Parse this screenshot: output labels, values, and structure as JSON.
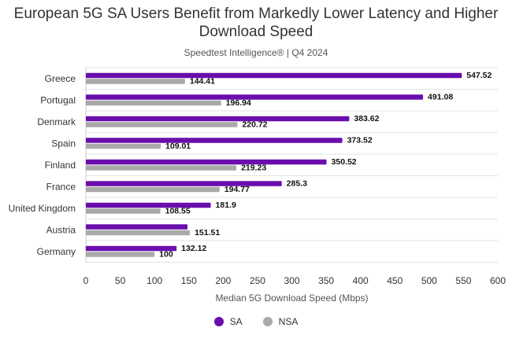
{
  "chart_data": {
    "type": "bar",
    "orientation": "horizontal",
    "title": "European 5G SA Users Benefit from Markedly Lower Latency and Higher Download Speed",
    "subtitle": "Speedtest Intelligence® | Q4 2024",
    "xlabel": "Median 5G Download Speed (Mbps)",
    "ylabel": "",
    "xlim": [
      0,
      600
    ],
    "xticks": [
      0,
      50,
      100,
      150,
      200,
      250,
      300,
      350,
      400,
      450,
      500,
      550,
      600
    ],
    "grid": true,
    "legend_position": "bottom",
    "categories": [
      "Greece",
      "Portugal",
      "Denmark",
      "Spain",
      "Finland",
      "France",
      "United Kingdom",
      "Austria",
      "Germany"
    ],
    "series": [
      {
        "name": "SA",
        "color": "#6a0dad",
        "values": [
          547.52,
          491.08,
          383.62,
          373.52,
          350.52,
          285.3,
          181.9,
          148,
          132.12
        ],
        "labels": [
          "547.52",
          "491.08",
          "383.62",
          "373.52",
          "350.52",
          "285.3",
          "181.9",
          "",
          "132.12"
        ]
      },
      {
        "name": "NSA",
        "color": "#a9a9a9",
        "values": [
          144.41,
          196.94,
          220.72,
          109.01,
          219.23,
          194.77,
          108.55,
          151.51,
          100
        ],
        "labels": [
          "144.41",
          "196.94",
          "220.72",
          "109.01",
          "219.23",
          "194.77",
          "108.55",
          "151.51",
          "100"
        ]
      }
    ]
  }
}
